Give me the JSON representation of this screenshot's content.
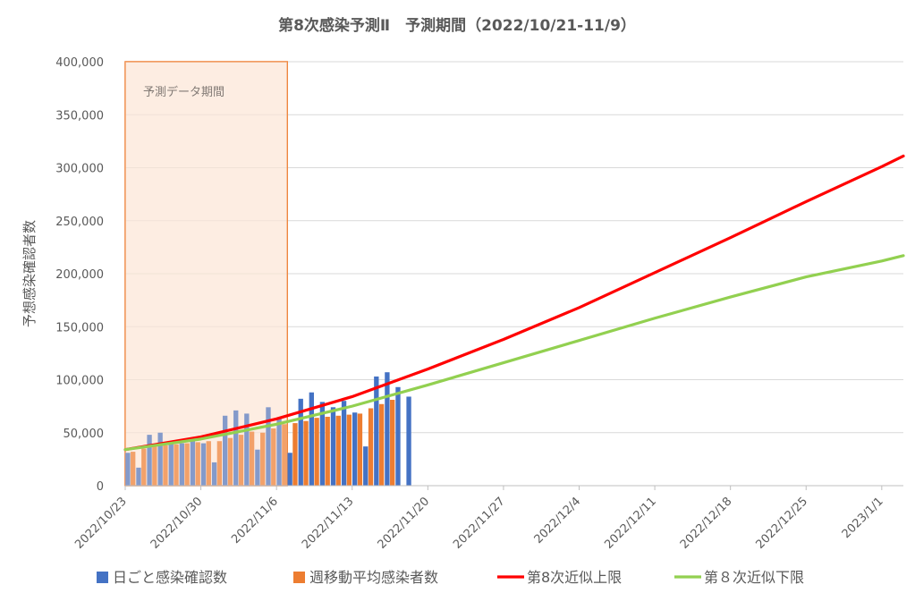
{
  "chart_data": {
    "type": "bar",
    "title": "第8次感染予測Ⅱ　予測期間（2022/10/21-11/9）",
    "ylabel": "予想感染確認者数",
    "xlabel": "",
    "ylim": [
      0,
      400000
    ],
    "y_ticks": [
      "0",
      "50,000",
      "100,000",
      "150,000",
      "200,000",
      "250,000",
      "300,000",
      "350,000",
      "400,000"
    ],
    "x_range": [
      "2022/10/23",
      "2023/1/3"
    ],
    "x_ticks": [
      "2022/10/23",
      "2022/10/30",
      "2022/11/6",
      "2022/11/13",
      "2022/11/20",
      "2022/11/27",
      "2022/12/4",
      "2022/12/11",
      "2022/12/18",
      "2022/12/25",
      "2023/1/1"
    ],
    "grid": true,
    "legend_position": "bottom",
    "annotation": {
      "label": "予測データ期間",
      "from": "2022/10/23",
      "to": "2022/11/7",
      "color": "#ed7d31"
    },
    "series": [
      {
        "name": "日ごと感染確認数",
        "kind": "bar",
        "color": "#4472c4",
        "dates": [
          "2022/10/23",
          "2022/10/24",
          "2022/10/25",
          "2022/10/26",
          "2022/10/27",
          "2022/10/28",
          "2022/10/29",
          "2022/10/30",
          "2022/10/31",
          "2022/11/1",
          "2022/11/2",
          "2022/11/3",
          "2022/11/4",
          "2022/11/5",
          "2022/11/6",
          "2022/11/7",
          "2022/11/8",
          "2022/11/9",
          "2022/11/10",
          "2022/11/11",
          "2022/11/12",
          "2022/11/13",
          "2022/11/14",
          "2022/11/15",
          "2022/11/16",
          "2022/11/17",
          "2022/11/18"
        ],
        "values": [
          31000,
          17000,
          48000,
          50000,
          41000,
          40000,
          43000,
          40000,
          22000,
          66000,
          71000,
          68000,
          34000,
          74000,
          64000,
          31000,
          82000,
          88000,
          79000,
          74000,
          80000,
          69000,
          37000,
          103000,
          107000,
          93000,
          84000
        ]
      },
      {
        "name": "週移動平均感染者数",
        "kind": "bar",
        "color": "#ed7d31",
        "dates": [
          "2022/10/23",
          "2022/10/24",
          "2022/10/25",
          "2022/10/26",
          "2022/10/27",
          "2022/10/28",
          "2022/10/29",
          "2022/10/30",
          "2022/10/31",
          "2022/11/1",
          "2022/11/2",
          "2022/11/3",
          "2022/11/4",
          "2022/11/5",
          "2022/11/6",
          "2022/11/7",
          "2022/11/8",
          "2022/11/9",
          "2022/11/10",
          "2022/11/11",
          "2022/11/12",
          "2022/11/13",
          "2022/11/14",
          "2022/11/15",
          "2022/11/16"
        ],
        "values": [
          32000,
          35000,
          37000,
          38000,
          39000,
          40000,
          41000,
          42000,
          42000,
          45000,
          48000,
          51000,
          50000,
          54000,
          58000,
          59000,
          61000,
          64000,
          65000,
          66000,
          67000,
          68000,
          73000,
          77000,
          81000
        ]
      },
      {
        "name": "第8次近似上限",
        "kind": "line",
        "color": "#ff0000",
        "x": [
          "2022/10/23",
          "2022/10/30",
          "2022/11/6",
          "2022/11/13",
          "2022/11/20",
          "2022/11/27",
          "2022/12/4",
          "2022/12/11",
          "2022/12/18",
          "2022/12/25",
          "2023/1/1",
          "2023/1/3"
        ],
        "values": [
          34000,
          46000,
          63000,
          84000,
          110000,
          138000,
          168000,
          201000,
          234000,
          268000,
          301000,
          311000
        ]
      },
      {
        "name": "第８次近似下限",
        "kind": "line",
        "color": "#92d050",
        "x": [
          "2022/10/23",
          "2022/10/30",
          "2022/11/6",
          "2022/11/13",
          "2022/11/20",
          "2022/11/27",
          "2022/12/4",
          "2022/12/11",
          "2022/12/18",
          "2022/12/25",
          "2023/1/1",
          "2023/1/3"
        ],
        "values": [
          34000,
          44000,
          58000,
          75000,
          95000,
          116000,
          137000,
          158000,
          178000,
          197000,
          212000,
          217000
        ]
      }
    ]
  }
}
